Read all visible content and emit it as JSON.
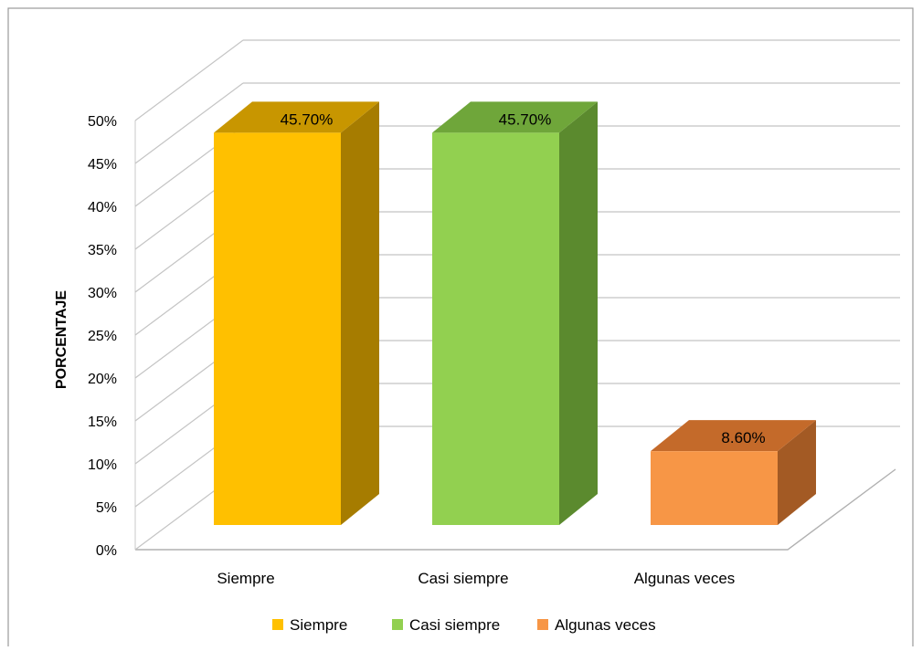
{
  "chart_data": {
    "type": "bar",
    "title": "",
    "xlabel": "",
    "ylabel": "PORCENTAJE",
    "categories": [
      "Siempre",
      "Casi siempre",
      "Algunas veces"
    ],
    "values": [
      45.7,
      45.7,
      8.6
    ],
    "data_labels": [
      "45.70%",
      "45.70%",
      "8.60%"
    ],
    "y_ticks": [
      "0%",
      "5%",
      "10%",
      "15%",
      "20%",
      "25%",
      "30%",
      "35%",
      "40%",
      "45%",
      "50%"
    ],
    "ylim": [
      0,
      50
    ],
    "grid": true,
    "legend_position": "bottom",
    "legend": [
      "Siempre",
      "Casi siempre",
      "Algunas veces"
    ],
    "colors": {
      "front": [
        "#FFC000",
        "#92D050",
        "#F79646"
      ],
      "top": [
        "#C89600",
        "#6FA63A",
        "#C46A2A"
      ],
      "side": [
        "#A67C00",
        "#5B8A2E",
        "#A35A24"
      ]
    }
  }
}
